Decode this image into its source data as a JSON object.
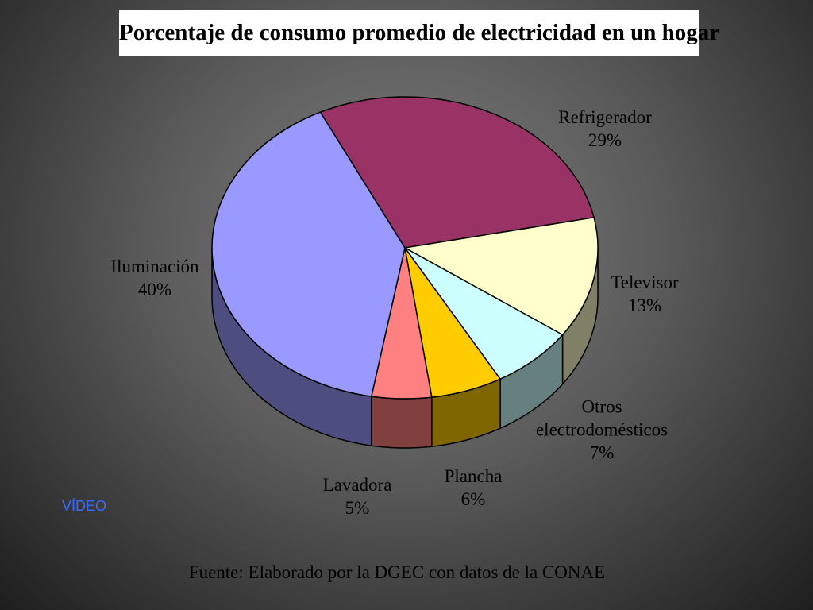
{
  "chart_data": {
    "type": "pie",
    "title": "Porcentaje de consumo promedio de electricidad en un hogar",
    "categories": [
      "Refrigerador",
      "Televisor",
      "Otros electrodomésticos",
      "Plancha",
      "Lavadora",
      "Iluminación"
    ],
    "values": [
      29,
      13,
      7,
      6,
      5,
      40
    ],
    "value_labels": [
      "29%",
      "13%",
      "7%",
      "6%",
      "5%",
      "40%"
    ],
    "colors": [
      "#993366",
      "#ffffcc",
      "#ccffff",
      "#ffcc00",
      "#ff8080",
      "#9999ff"
    ],
    "source": "Fuente: Elaborado por la DGEC con datos de la CONAE"
  },
  "link_text": "VÍDEO"
}
